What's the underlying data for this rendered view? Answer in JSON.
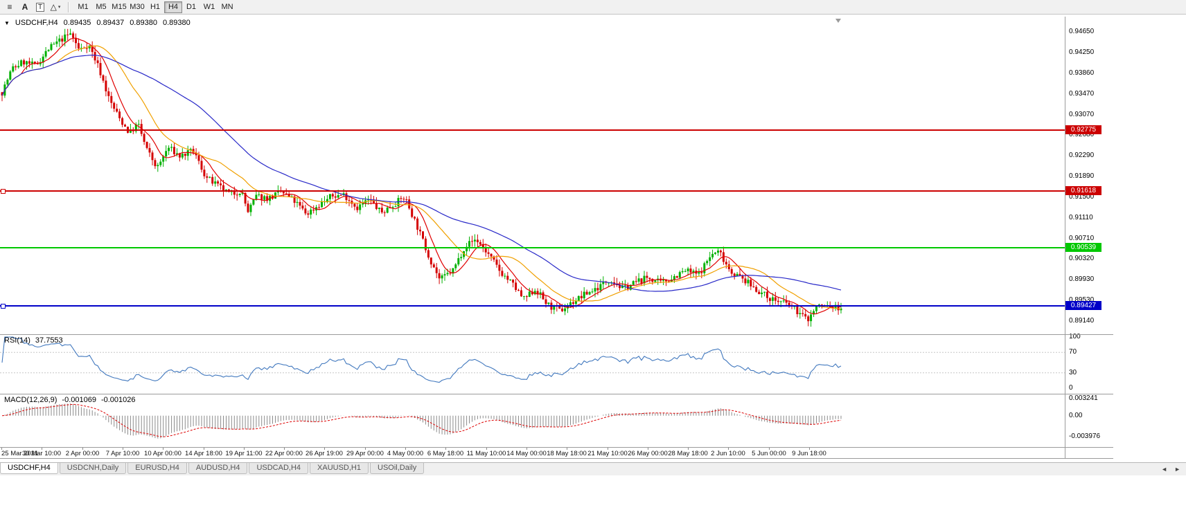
{
  "toolbar": {
    "icons": [
      {
        "name": "line-studies",
        "glyph": "≡"
      },
      {
        "name": "text-label",
        "glyph": "A"
      },
      {
        "name": "text-box",
        "glyph": "T"
      },
      {
        "name": "shapes",
        "glyph": "△",
        "caret": "▾"
      }
    ],
    "timeframes": [
      "M1",
      "M5",
      "M15",
      "M30",
      "H1",
      "H4",
      "D1",
      "W1",
      "MN"
    ],
    "active_timeframe": "H4"
  },
  "ohlc_line": {
    "collapse_icon": "▼",
    "symbol": "USDCHF,H4",
    "open": "0.89435",
    "high": "0.89437",
    "low": "0.89380",
    "close": "0.89380"
  },
  "rsi_panel": {
    "label": "RSI(14)",
    "value": "37.7553",
    "axis_labels": [
      "100",
      "70",
      "30",
      "0"
    ],
    "axis_values": [
      100,
      70,
      30,
      0
    ],
    "levels": [
      70,
      30
    ],
    "line_color": "#4178BE"
  },
  "macd_panel": {
    "label": "MACD(12,26,9)",
    "value_main": "-0.001069",
    "value_signal": "-0.001026",
    "axis_labels": [
      "0.003241",
      "0.00",
      "-0.003976"
    ],
    "axis_values": [
      0.003241,
      0,
      -0.003976
    ],
    "hist_color": "#8a8a8a",
    "signal_color": "#DD0000"
  },
  "tabs": {
    "scroll_left": "◄",
    "scroll_right": "►",
    "items": [
      {
        "label": "USDCHF,H4",
        "active": true
      },
      {
        "label": "USDCNH,Daily",
        "active": false
      },
      {
        "label": "EURUSD,H4",
        "active": false
      },
      {
        "label": "AUDUSD,H4",
        "active": false
      },
      {
        "label": "USDCAD,H4",
        "active": false
      },
      {
        "label": "XAUUSD,H1",
        "active": false
      },
      {
        "label": "USOil,Daily",
        "active": false
      }
    ]
  },
  "chart_data": {
    "type": "candlestick",
    "title": "USDCHF,H4",
    "symbol": "USDCHF",
    "timeframe": "H4",
    "price_min": 0.88889,
    "price_max": 0.94941,
    "up_color": "#00B000",
    "down_color": "#D40000",
    "price_axis_labels": [
      "0.94650",
      "0.94250",
      "0.93860",
      "0.93470",
      "0.93070",
      "0.92680",
      "0.92290",
      "0.91890",
      "0.91500",
      "0.91110",
      "0.90710",
      "0.90320",
      "0.89930",
      "0.89530",
      "0.89140"
    ],
    "time_labels": [
      "25 Mar 2021",
      "30 Mar 10:00",
      "2 Apr 00:00",
      "7 Apr 10:00",
      "10 Apr 00:00",
      "14 Apr 18:00",
      "19 Apr 11:00",
      "22 Apr 00:00",
      "26 Apr 19:00",
      "29 Apr 00:00",
      "4 May 00:00",
      "6 May 18:00",
      "11 May 10:00",
      "14 May 00:00",
      "18 May 18:00",
      "21 May 10:00",
      "26 May 00:00",
      "28 May 18:00",
      "2 Jun 10:00",
      "5 Jun 00:00",
      "9 Jun 18:00"
    ],
    "levels": [
      {
        "price": 0.92775,
        "label": "0.92775",
        "color": "#CC0000",
        "left_marker": false
      },
      {
        "price": 0.91618,
        "label": "0.91618",
        "color": "#CC0000",
        "left_marker": true
      },
      {
        "price": 0.90539,
        "label": "0.90539",
        "color": "#00C800",
        "left_marker": false
      },
      {
        "price": 0.89427,
        "label": "0.89427",
        "color": "#0000C8",
        "left_marker": true
      }
    ],
    "moving_averages": [
      {
        "period": 8,
        "color": "#E00000"
      },
      {
        "period": 21,
        "color": "#F0A000"
      },
      {
        "period": 55,
        "color": "#2828C8"
      }
    ],
    "num_candles": 308,
    "seed": 7,
    "noise": 0.0013,
    "wick": 0.0011,
    "last_close": 0.8938,
    "anchors": [
      [
        0.0,
        0.935
      ],
      [
        0.012,
        0.9395
      ],
      [
        0.025,
        0.9408
      ],
      [
        0.04,
        0.94
      ],
      [
        0.055,
        0.9432
      ],
      [
        0.07,
        0.945
      ],
      [
        0.082,
        0.9462
      ],
      [
        0.092,
        0.943
      ],
      [
        0.103,
        0.9442
      ],
      [
        0.115,
        0.9398
      ],
      [
        0.128,
        0.9335
      ],
      [
        0.14,
        0.93
      ],
      [
        0.152,
        0.9272
      ],
      [
        0.162,
        0.929
      ],
      [
        0.172,
        0.9242
      ],
      [
        0.185,
        0.9205
      ],
      [
        0.198,
        0.9245
      ],
      [
        0.212,
        0.9228
      ],
      [
        0.228,
        0.9238
      ],
      [
        0.243,
        0.9188
      ],
      [
        0.258,
        0.917
      ],
      [
        0.272,
        0.9155
      ],
      [
        0.285,
        0.9163
      ],
      [
        0.293,
        0.9122
      ],
      [
        0.303,
        0.9152
      ],
      [
        0.318,
        0.9148
      ],
      [
        0.333,
        0.916
      ],
      [
        0.348,
        0.9143
      ],
      [
        0.363,
        0.9118
      ],
      [
        0.378,
        0.9136
      ],
      [
        0.393,
        0.9152
      ],
      [
        0.408,
        0.9155
      ],
      [
        0.423,
        0.913
      ],
      [
        0.438,
        0.9146
      ],
      [
        0.452,
        0.912
      ],
      [
        0.466,
        0.9136
      ],
      [
        0.48,
        0.915
      ],
      [
        0.494,
        0.9098
      ],
      [
        0.508,
        0.904
      ],
      [
        0.522,
        0.8992
      ],
      [
        0.538,
        0.9012
      ],
      [
        0.552,
        0.9058
      ],
      [
        0.565,
        0.907
      ],
      [
        0.58,
        0.904
      ],
      [
        0.594,
        0.9008
      ],
      [
        0.608,
        0.8985
      ],
      [
        0.622,
        0.8955
      ],
      [
        0.636,
        0.8975
      ],
      [
        0.65,
        0.8945
      ],
      [
        0.665,
        0.8933
      ],
      [
        0.68,
        0.895
      ],
      [
        0.695,
        0.8965
      ],
      [
        0.71,
        0.8978
      ],
      [
        0.725,
        0.8995
      ],
      [
        0.74,
        0.8975
      ],
      [
        0.755,
        0.8988
      ],
      [
        0.77,
        0.8997
      ],
      [
        0.785,
        0.8986
      ],
      [
        0.8,
        0.8998
      ],
      [
        0.815,
        0.901
      ],
      [
        0.83,
        0.9002
      ],
      [
        0.845,
        0.904
      ],
      [
        0.855,
        0.9047
      ],
      [
        0.868,
        0.901
      ],
      [
        0.882,
        0.8995
      ],
      [
        0.896,
        0.8978
      ],
      [
        0.91,
        0.8962
      ],
      [
        0.924,
        0.8952
      ],
      [
        0.938,
        0.8945
      ],
      [
        0.95,
        0.893
      ],
      [
        0.96,
        0.8916
      ],
      [
        0.972,
        0.8944
      ],
      [
        0.985,
        0.8942
      ],
      [
        1.0,
        0.8938
      ]
    ]
  }
}
